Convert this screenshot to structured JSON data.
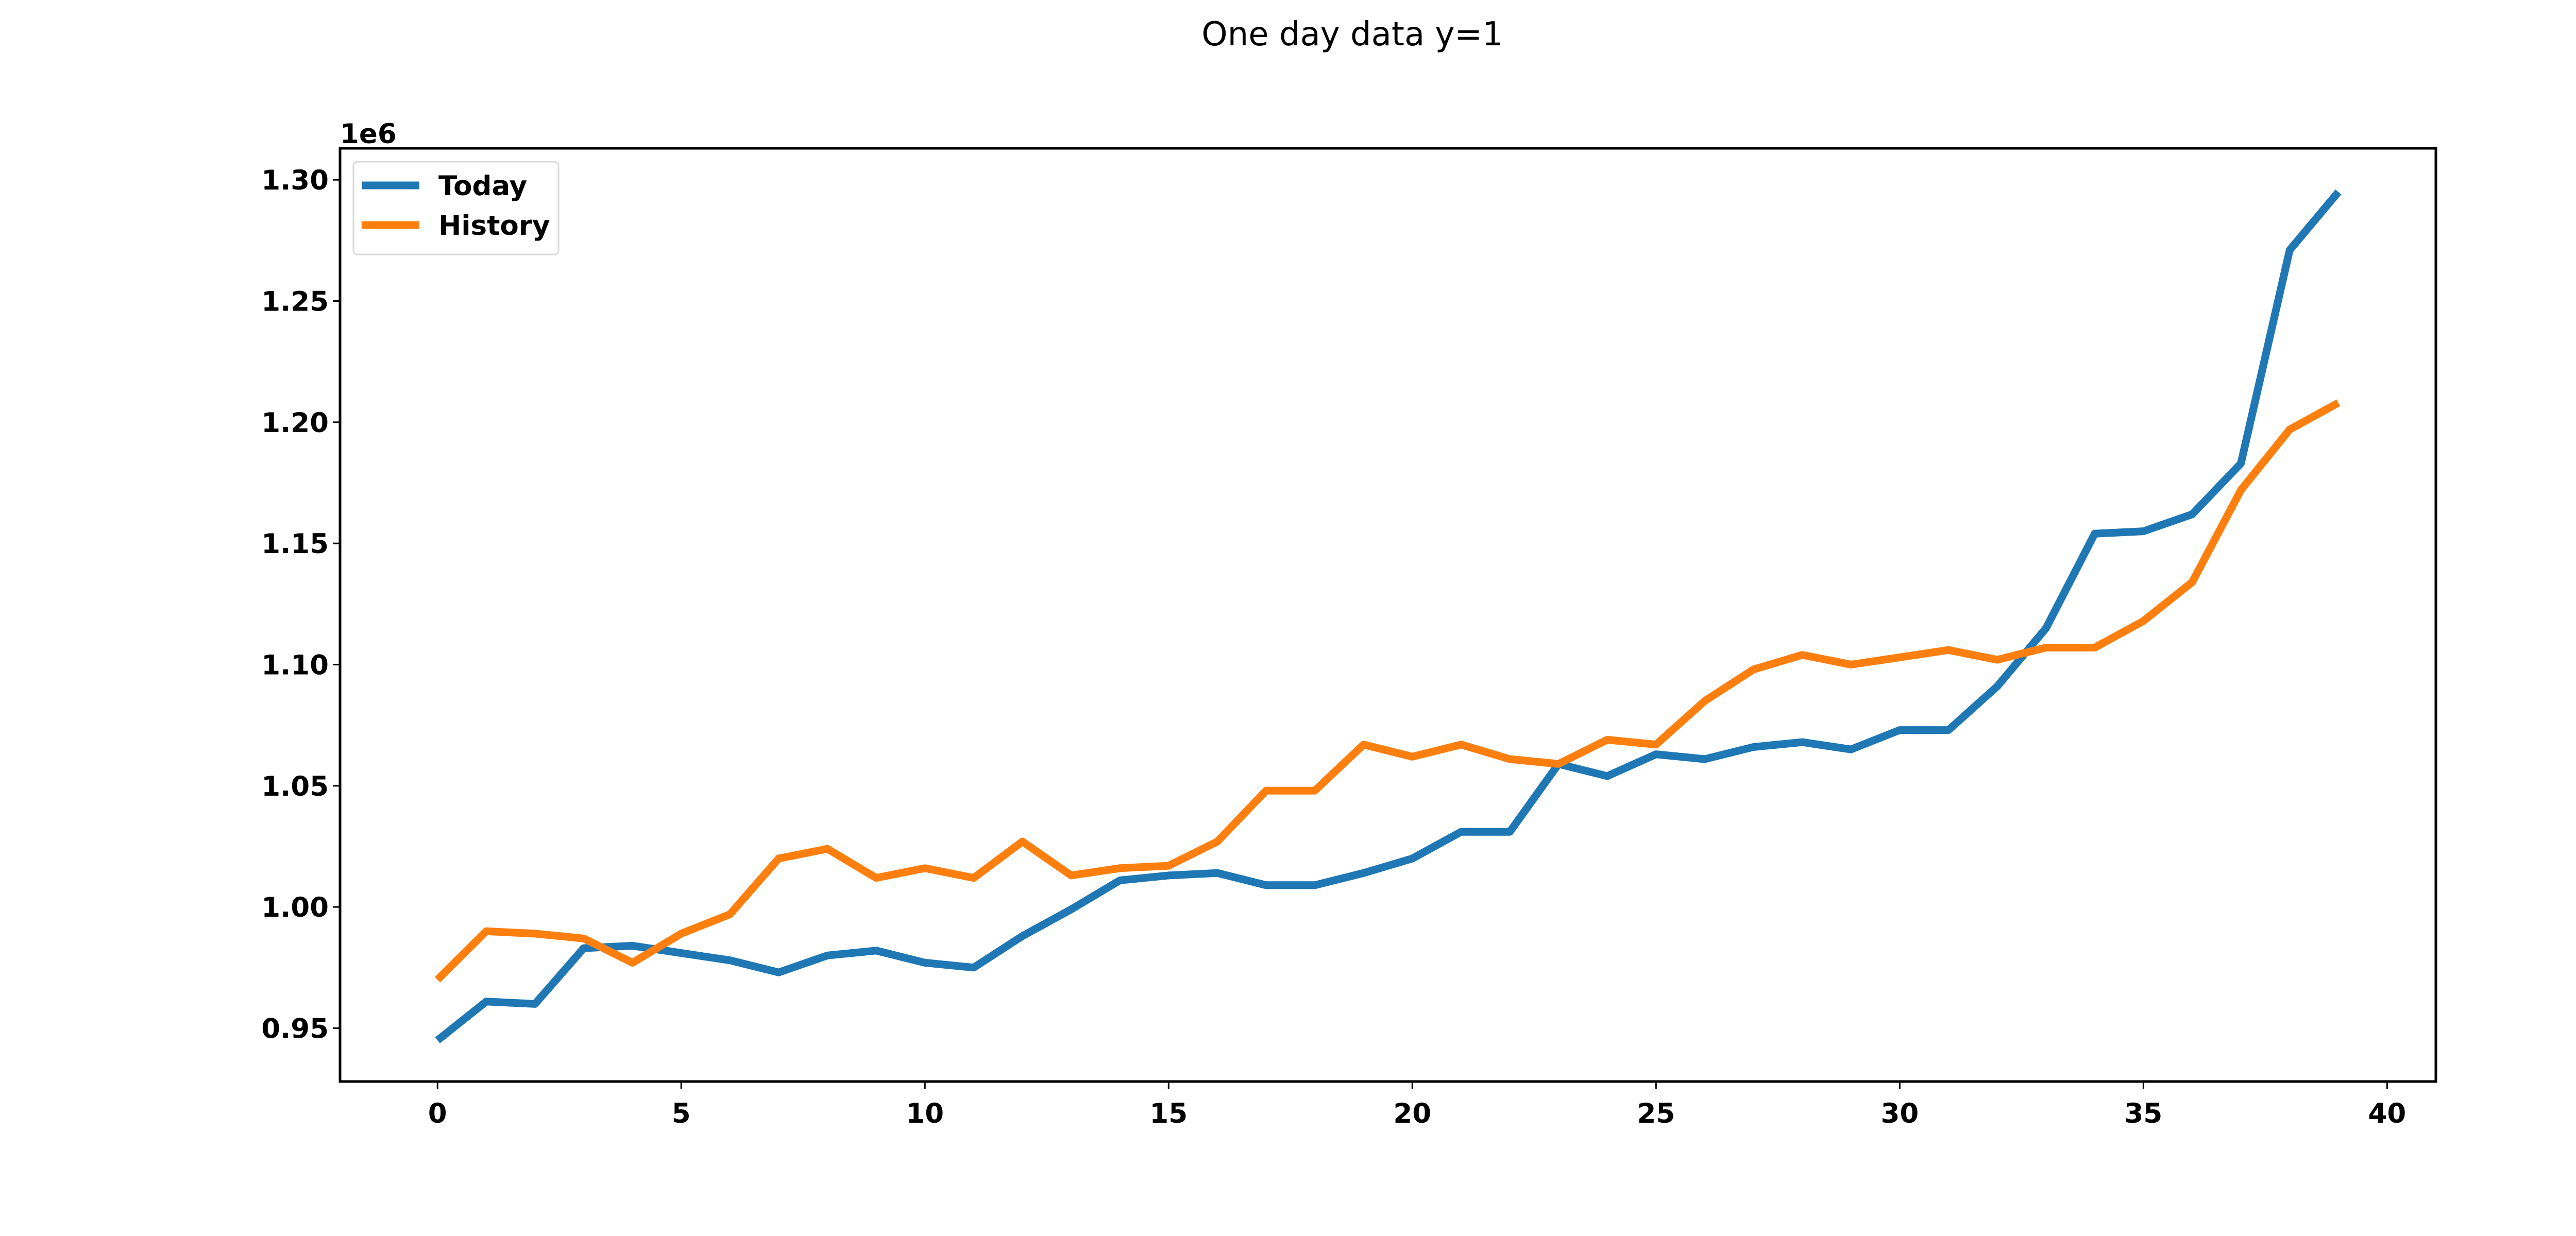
{
  "chart_data": {
    "type": "line",
    "title": "One day data y=1",
    "xlabel": "",
    "ylabel": "",
    "y_offset_label": "1e6",
    "xlim": [
      -2,
      41
    ],
    "ylim": [
      0.928,
      1.313
    ],
    "xticks": [
      0,
      5,
      10,
      15,
      20,
      25,
      30,
      35,
      40
    ],
    "xtick_labels": [
      "0",
      "5",
      "10",
      "15",
      "20",
      "25",
      "30",
      "35",
      "40"
    ],
    "yticks": [
      0.95,
      1.0,
      1.05,
      1.1,
      1.15,
      1.2,
      1.25,
      1.3
    ],
    "ytick_labels": [
      "0.95",
      "1.00",
      "1.05",
      "1.10",
      "1.15",
      "1.20",
      "1.25",
      "1.30"
    ],
    "grid": false,
    "legend_position": "upper-left",
    "x": [
      0,
      1,
      2,
      3,
      4,
      5,
      6,
      7,
      8,
      9,
      10,
      11,
      12,
      13,
      14,
      15,
      16,
      17,
      18,
      19,
      20,
      21,
      22,
      23,
      24,
      25,
      26,
      27,
      28,
      29,
      30,
      31,
      32,
      33,
      34,
      35,
      36,
      37,
      38,
      39
    ],
    "series": [
      {
        "name": "Today",
        "color": "#1f77b4",
        "values": [
          0.945,
          0.961,
          0.96,
          0.983,
          0.984,
          0.981,
          0.978,
          0.973,
          0.98,
          0.982,
          0.977,
          0.975,
          0.988,
          0.999,
          1.011,
          1.013,
          1.014,
          1.009,
          1.009,
          1.014,
          1.02,
          1.031,
          1.031,
          1.059,
          1.054,
          1.063,
          1.061,
          1.066,
          1.068,
          1.065,
          1.073,
          1.073,
          1.091,
          1.115,
          1.154,
          1.155,
          1.162,
          1.183,
          1.271,
          1.295
        ]
      },
      {
        "name": "History",
        "color": "#ff7f0e",
        "values": [
          0.97,
          0.99,
          0.989,
          0.987,
          0.977,
          0.989,
          0.997,
          1.02,
          1.024,
          1.012,
          1.016,
          1.012,
          1.027,
          1.013,
          1.016,
          1.017,
          1.027,
          1.048,
          1.048,
          1.067,
          1.062,
          1.067,
          1.061,
          1.059,
          1.069,
          1.067,
          1.085,
          1.098,
          1.104,
          1.1,
          1.103,
          1.106,
          1.102,
          1.107,
          1.107,
          1.118,
          1.134,
          1.172,
          1.197,
          1.208
        ]
      }
    ]
  }
}
